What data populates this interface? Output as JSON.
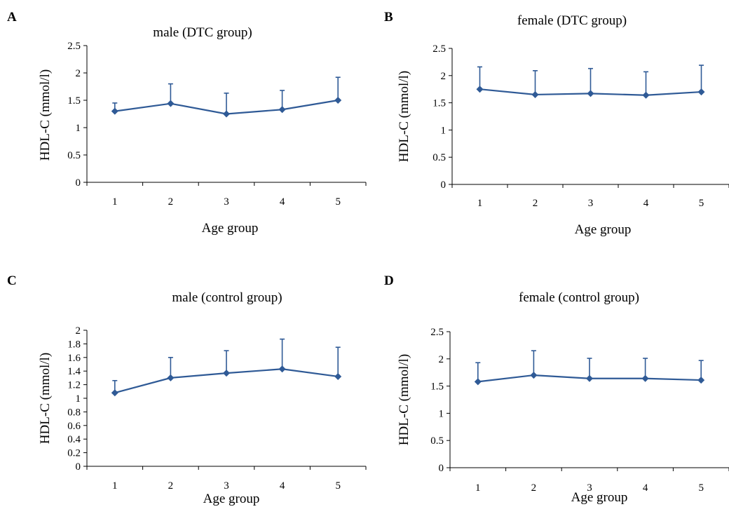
{
  "colors": {
    "series": "#2f5a96",
    "axis": "#000000"
  },
  "chart_data": [
    {
      "panel": "A",
      "type": "line",
      "title": "male (DTC group)",
      "xlabel": "Age group",
      "ylabel": "HDL-C (mmol/l)",
      "categories": [
        "1",
        "2",
        "3",
        "4",
        "5"
      ],
      "yticks": [
        "0",
        "0.5",
        "1",
        "1.5",
        "2",
        "2.5"
      ],
      "ylim": [
        0,
        2.5
      ],
      "series": [
        {
          "values": [
            1.3,
            1.44,
            1.25,
            1.33,
            1.5
          ],
          "error_upper": [
            1.45,
            1.8,
            1.63,
            1.68,
            1.92
          ]
        }
      ]
    },
    {
      "panel": "B",
      "type": "line",
      "title": "female (DTC group)",
      "xlabel": "Age group",
      "ylabel": "HDL-C (mmol/l)",
      "categories": [
        "1",
        "2",
        "3",
        "4",
        "5"
      ],
      "yticks": [
        "0",
        "0.5",
        "1",
        "1.5",
        "2",
        "2.5"
      ],
      "ylim": [
        0,
        2.5
      ],
      "series": [
        {
          "values": [
            1.75,
            1.65,
            1.67,
            1.64,
            1.7
          ],
          "error_upper": [
            2.16,
            2.09,
            2.13,
            2.07,
            2.19
          ]
        }
      ]
    },
    {
      "panel": "C",
      "type": "line",
      "title": "male (control group)",
      "xlabel": "Age group",
      "ylabel": "HDL-C (mmol/l)",
      "categories": [
        "1",
        "2",
        "3",
        "4",
        "5"
      ],
      "yticks": [
        "0",
        "0.2",
        "0.4",
        "0.6",
        "0.8",
        "1",
        "1.2",
        "1.4",
        "1.6",
        "1.8",
        "2"
      ],
      "ylim": [
        0,
        2
      ],
      "series": [
        {
          "values": [
            1.08,
            1.3,
            1.37,
            1.43,
            1.32
          ],
          "error_upper": [
            1.26,
            1.6,
            1.7,
            1.87,
            1.75
          ]
        }
      ]
    },
    {
      "panel": "D",
      "type": "line",
      "title": "female (control group)",
      "xlabel": "Age group",
      "ylabel": "HDL-C (mmol/l)",
      "categories": [
        "1",
        "2",
        "3",
        "4",
        "5"
      ],
      "yticks": [
        "0",
        "0.5",
        "1",
        "1.5",
        "2",
        "2.5"
      ],
      "ylim": [
        0,
        2.5
      ],
      "series": [
        {
          "values": [
            1.58,
            1.7,
            1.64,
            1.64,
            1.61
          ],
          "error_upper": [
            1.93,
            2.15,
            2.01,
            2.01,
            1.97
          ]
        }
      ]
    }
  ]
}
